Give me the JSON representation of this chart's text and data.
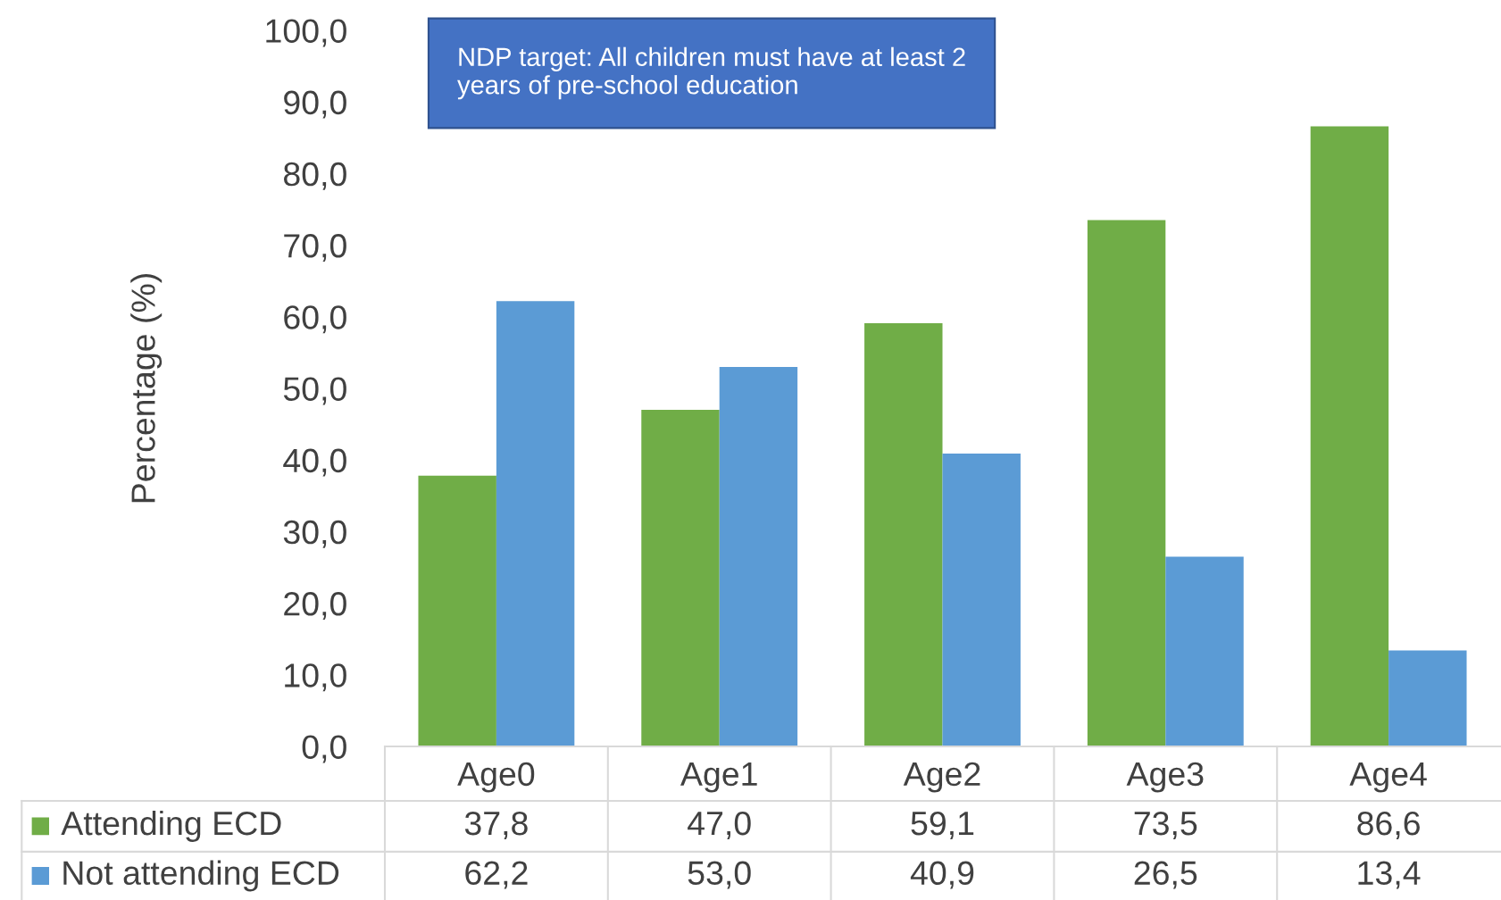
{
  "chart_data": {
    "type": "bar",
    "ylabel": "Percentage (%)",
    "categories": [
      "Age0",
      "Age1",
      "Age2",
      "Age3",
      "Age4"
    ],
    "series": [
      {
        "name": "Attending ECD",
        "color": "#70ad47",
        "values": [
          37.8,
          47.0,
          59.1,
          73.5,
          86.6
        ],
        "value_labels": [
          "37,8",
          "47,0",
          "59,1",
          "73,5",
          "86,6"
        ]
      },
      {
        "name": "Not attending ECD",
        "color": "#5b9bd5",
        "values": [
          62.2,
          53.0,
          40.9,
          26.5,
          13.4
        ],
        "value_labels": [
          "62,2",
          "53,0",
          "40,9",
          "26,5",
          "13,4"
        ]
      }
    ],
    "ylim": [
      0,
      100
    ],
    "yticks": [
      {
        "value": 0,
        "label": "0,0"
      },
      {
        "value": 10,
        "label": "10,0"
      },
      {
        "value": 20,
        "label": "20,0"
      },
      {
        "value": 30,
        "label": "30,0"
      },
      {
        "value": 40,
        "label": "40,0"
      },
      {
        "value": 50,
        "label": "50,0"
      },
      {
        "value": 60,
        "label": "60,0"
      },
      {
        "value": 70,
        "label": "70,0"
      },
      {
        "value": 80,
        "label": "80,0"
      },
      {
        "value": 90,
        "label": "90,0"
      },
      {
        "value": 100,
        "label": "100,0"
      }
    ],
    "annotations": [
      "NDP target: All children must have at least 2\nyears of pre-school education"
    ],
    "grid": false,
    "legend": "bottom left"
  }
}
